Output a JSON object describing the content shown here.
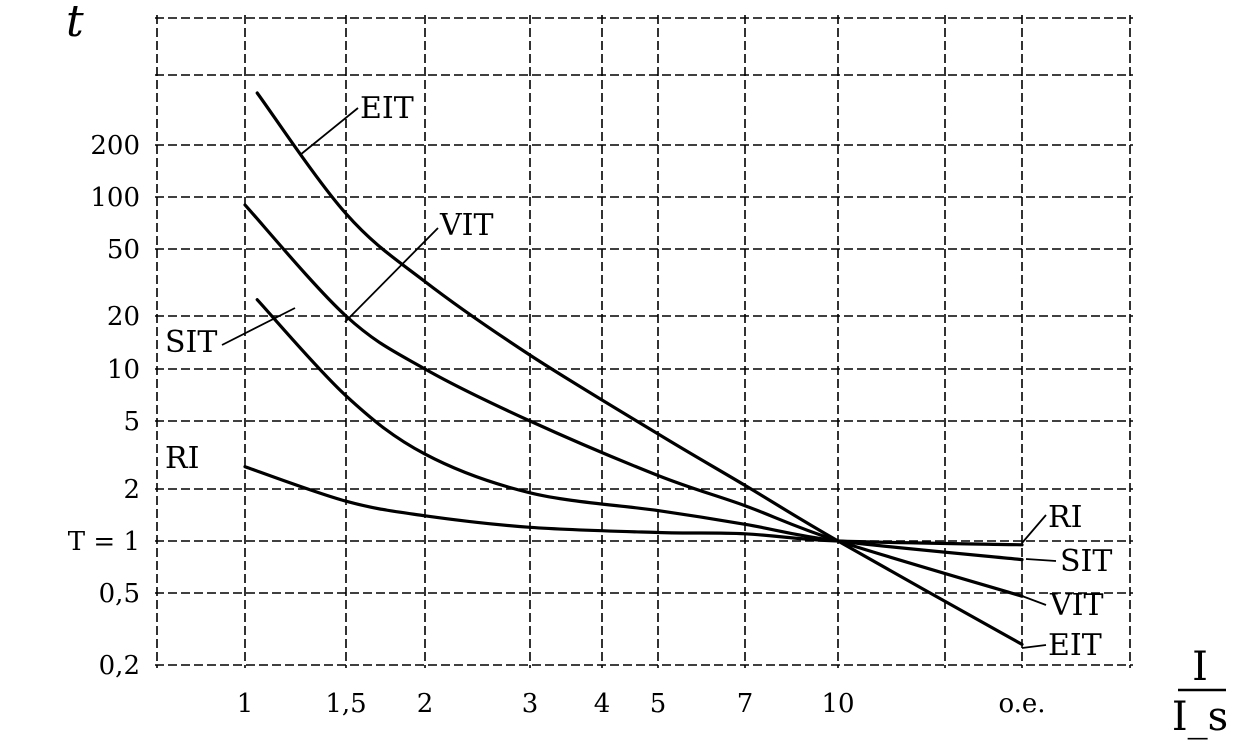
{
  "chart_data": {
    "type": "line",
    "y_axis_label": "t",
    "x_axis_label": {
      "numerator": "I",
      "denominator": "I_s"
    },
    "x_ticks": [
      {
        "label": "1",
        "value": 1
      },
      {
        "label": "1,5",
        "value": 1.5
      },
      {
        "label": "2",
        "value": 2
      },
      {
        "label": "3",
        "value": 3
      },
      {
        "label": "4",
        "value": 4
      },
      {
        "label": "5",
        "value": 5
      },
      {
        "label": "7",
        "value": 7
      },
      {
        "label": "10",
        "value": 10
      },
      {
        "label": "o.e.",
        "value": 20
      }
    ],
    "y_ticks": [
      {
        "label": "0,2",
        "value": 0.2
      },
      {
        "label": "0,5",
        "value": 0.5
      },
      {
        "label": "T = 1",
        "value": 1
      },
      {
        "label": "2",
        "value": 2
      },
      {
        "label": "5",
        "value": 5
      },
      {
        "label": "10",
        "value": 10
      },
      {
        "label": "20",
        "value": 20
      },
      {
        "label": "50",
        "value": 50
      },
      {
        "label": "100",
        "value": 100
      },
      {
        "label": "200",
        "value": 200
      }
    ],
    "series": [
      {
        "name": "RI",
        "points": [
          [
            1,
            2.7
          ],
          [
            1.5,
            1.7
          ],
          [
            2,
            1.4
          ],
          [
            3,
            1.2
          ],
          [
            5,
            1.12
          ],
          [
            7,
            1.1
          ],
          [
            10,
            1.0
          ],
          [
            20,
            0.95
          ]
        ]
      },
      {
        "name": "SIT",
        "points": [
          [
            1.05,
            25
          ],
          [
            1.5,
            7
          ],
          [
            2,
            3.2
          ],
          [
            3,
            1.9
          ],
          [
            5,
            1.5
          ],
          [
            7,
            1.25
          ],
          [
            10,
            1.0
          ],
          [
            20,
            0.78
          ]
        ]
      },
      {
        "name": "VIT",
        "points": [
          [
            1,
            90
          ],
          [
            1.5,
            20
          ],
          [
            2,
            10
          ],
          [
            3,
            5
          ],
          [
            5,
            2.4
          ],
          [
            7,
            1.6
          ],
          [
            10,
            1.0
          ],
          [
            20,
            0.48
          ]
        ]
      },
      {
        "name": "EIT",
        "points": [
          [
            1.05,
            400
          ],
          [
            1.5,
            80
          ],
          [
            2,
            32
          ],
          [
            3,
            12
          ],
          [
            5,
            4.2
          ],
          [
            7,
            2.1
          ],
          [
            10,
            1.0
          ],
          [
            20,
            0.26
          ]
        ]
      }
    ],
    "curve_labels": {
      "left": [
        "EIT",
        "VIT",
        "SIT",
        "RI"
      ],
      "right": [
        "RI",
        "SIT",
        "VIT",
        "EIT"
      ]
    }
  }
}
